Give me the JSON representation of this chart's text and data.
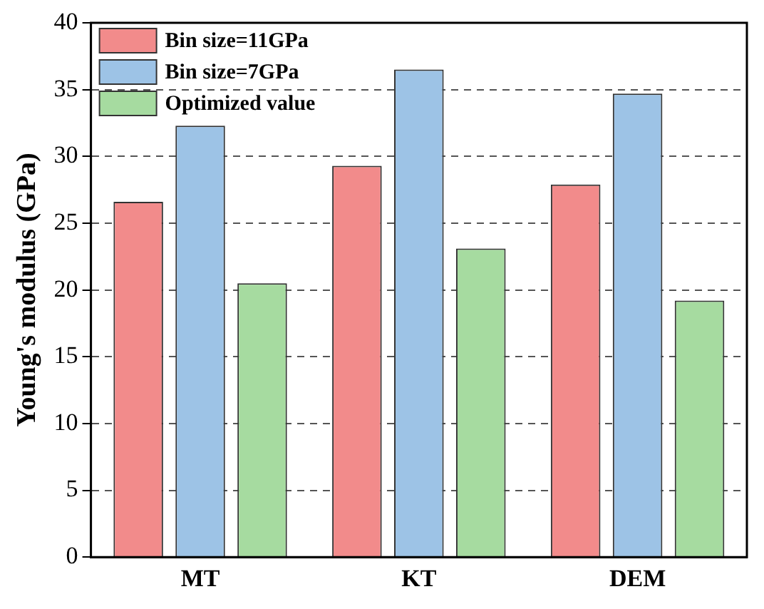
{
  "chart_data": {
    "type": "bar",
    "ylabel": "Young's modulus (GPa)",
    "categories": [
      "MT",
      "KT",
      "DEM"
    ],
    "series": [
      {
        "name": "Bin size=11GPa",
        "color": "#f28b8b",
        "values": [
          26.6,
          29.3,
          27.9
        ]
      },
      {
        "name": "Bin size=7GPa",
        "color": "#9dc3e6",
        "values": [
          32.3,
          36.5,
          34.7
        ]
      },
      {
        "name": "Optimized value",
        "color": "#a6dba0",
        "values": [
          20.5,
          23.1,
          19.2
        ]
      }
    ],
    "ylim": [
      0,
      40
    ],
    "yticks": [
      0,
      5,
      10,
      15,
      20,
      25,
      30,
      35,
      40
    ],
    "grid": "y",
    "legend": "top left"
  }
}
